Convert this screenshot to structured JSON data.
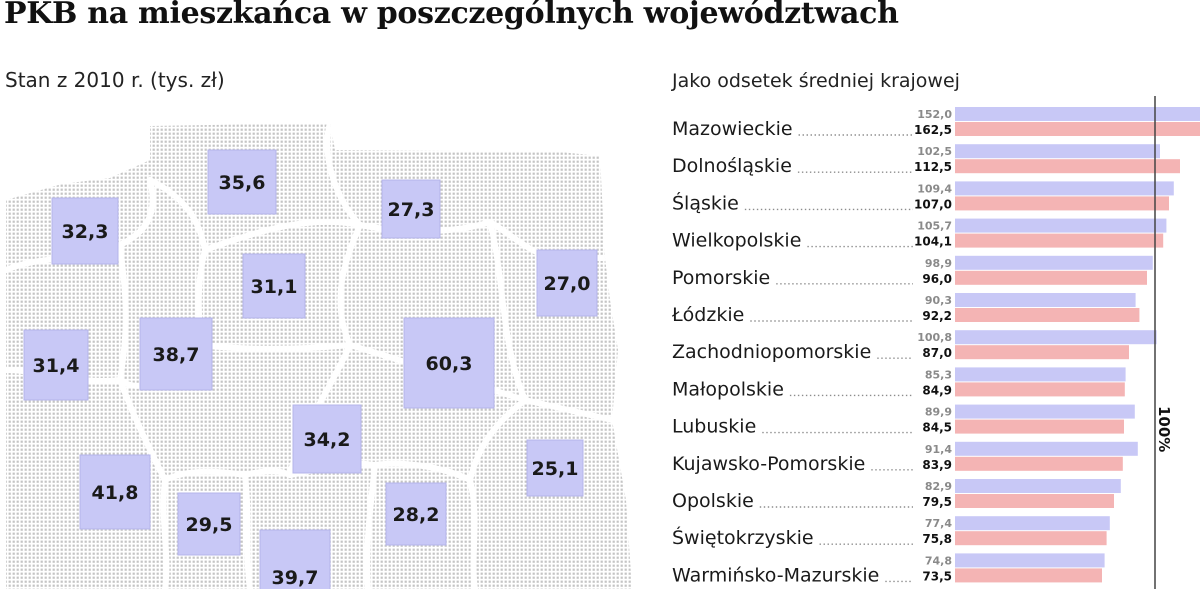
{
  "title": "PKB na mieszkańca w poszczególnych województwach",
  "left_subtitle": "Stan z 2010 r. (tys. zł)",
  "right_subtitle": "Jako odsetek średniej krajowej",
  "colors": {
    "box_fill": "#c8c8f6",
    "box_stroke": "#b4b4ea",
    "map_dots": "#c4c4c4",
    "map_borders": "#ffffff",
    "bar_top": "#c8c8f6",
    "bar_bottom": "#f4b4b4",
    "ref_line": "#444444",
    "dot_leader": "#8c8c8c"
  },
  "map_values": [
    "35,6",
    "27,3",
    "32,3",
    "31,1",
    "27,0",
    "31,4",
    "38,7",
    "60,3",
    "34,2",
    "41,8",
    "25,1",
    "29,5",
    "28,2",
    "39,7"
  ],
  "chart_data": {
    "type": "bar",
    "orientation": "horizontal",
    "title": "Jako odsetek średniej krajowej",
    "reference_label": "100%",
    "reference_value": 100,
    "categories": [
      "Mazowieckie",
      "Dolnośląskie",
      "Śląskie",
      "Wielkopolskie",
      "Pomorskie",
      "Łódzkie",
      "Zachodniopomorskie",
      "Małopolskie",
      "Lubuskie",
      "Kujawsko-Pomorskie",
      "Opolskie",
      "Świętokrzyskie",
      "Warmińsko-Mazurskie"
    ],
    "series": [
      {
        "values": [
          152.0,
          102.5,
          109.4,
          105.7,
          98.9,
          90.3,
          100.8,
          85.3,
          89.9,
          91.4,
          82.9,
          77.4,
          74.8
        ],
        "labels": [
          "152,0",
          "102,5",
          "109,4",
          "105,7",
          "98,9",
          "90,3",
          "100,8",
          "85,3",
          "89,9",
          "91,4",
          "82,9",
          "77,4",
          "74,8"
        ]
      },
      {
        "values": [
          162.5,
          112.5,
          107.0,
          104.1,
          96.0,
          92.2,
          87.0,
          84.9,
          84.5,
          83.9,
          79.5,
          75.8,
          73.5
        ],
        "labels": [
          "162,5",
          "112,5",
          "107,0",
          "104,1",
          "96,0",
          "92,2",
          "87,0",
          "84,9",
          "84,5",
          "83,9",
          "79,5",
          "75,8",
          "73,5"
        ]
      }
    ]
  }
}
